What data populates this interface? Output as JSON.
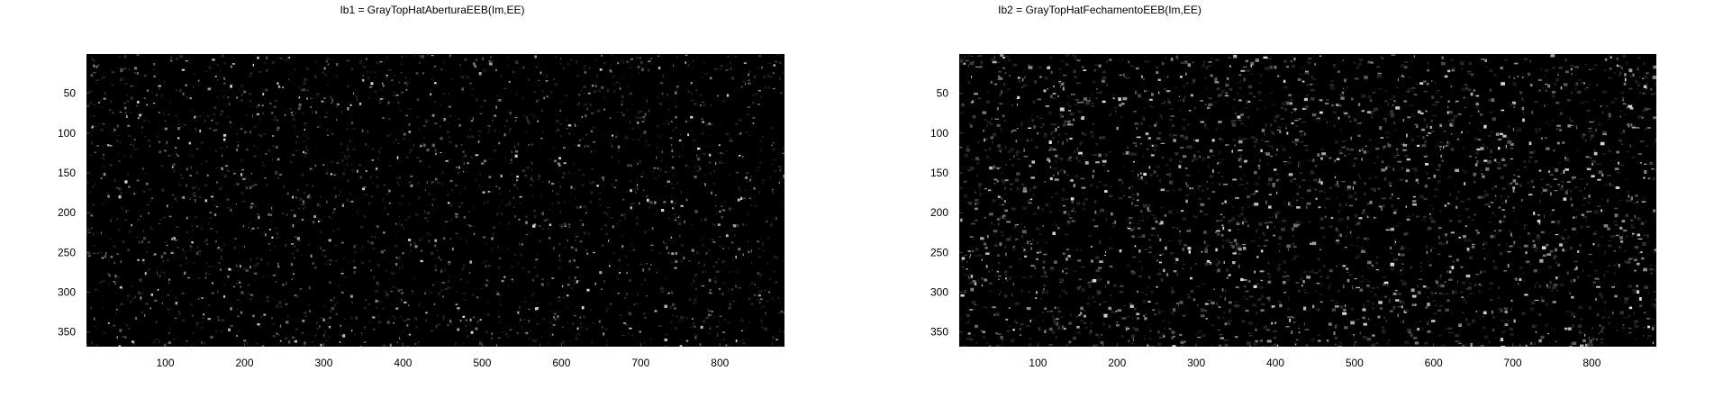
{
  "chart_data": [
    {
      "type": "heatmap",
      "title": "Ib1 = GrayTopHatAberturaEEB(Im,EE)",
      "colormap": "gray",
      "xlim": [
        0.5,
        881.5
      ],
      "ylim": [
        368.5,
        0.5
      ],
      "xticks": [
        100,
        200,
        300,
        400,
        500,
        600,
        700,
        800
      ],
      "yticks": [
        50,
        100,
        150,
        200,
        250,
        300,
        350
      ],
      "xtick_labels": [
        "100",
        "200",
        "300",
        "400",
        "500",
        "600",
        "700",
        "800"
      ],
      "ytick_labels": [
        "50",
        "100",
        "150",
        "200",
        "250",
        "300",
        "350"
      ],
      "background_color": "#000000"
    },
    {
      "type": "heatmap",
      "title": "Ib2 = GrayTopHatFechamentoEEB(Im,EE)",
      "colormap": "gray",
      "xlim": [
        0.5,
        881.5
      ],
      "ylim": [
        368.5,
        0.5
      ],
      "xticks": [
        100,
        200,
        300,
        400,
        500,
        600,
        700,
        800
      ],
      "yticks": [
        50,
        100,
        150,
        200,
        250,
        300,
        350
      ],
      "xtick_labels": [
        "100",
        "200",
        "300",
        "400",
        "500",
        "600",
        "700",
        "800"
      ],
      "ytick_labels": [
        "50",
        "100",
        "150",
        "200",
        "250",
        "300",
        "350"
      ],
      "background_color": "#000000"
    }
  ]
}
